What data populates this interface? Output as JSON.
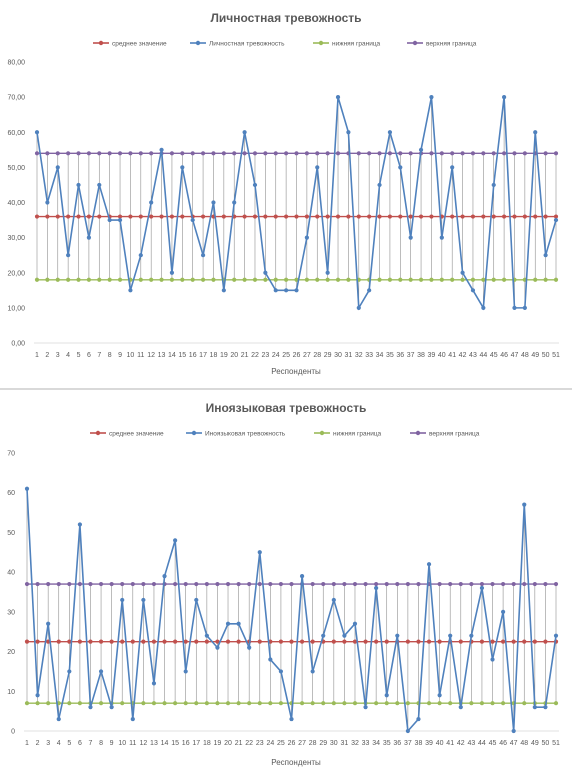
{
  "chart_data": [
    {
      "type": "line",
      "title": "Личностная тревожность",
      "xlabel": "Респонденты",
      "ylabel": "",
      "ylim": [
        0,
        80
      ],
      "ytick_step": 10,
      "ytick_format": "comma2",
      "x": [
        1,
        2,
        3,
        4,
        5,
        6,
        7,
        8,
        9,
        10,
        11,
        12,
        13,
        14,
        15,
        16,
        17,
        18,
        19,
        20,
        21,
        22,
        23,
        24,
        25,
        26,
        27,
        28,
        29,
        30,
        31,
        32,
        33,
        34,
        35,
        36,
        37,
        38,
        39,
        40,
        41,
        42,
        43,
        44,
        45,
        46,
        47,
        48,
        49,
        50,
        51
      ],
      "legend_position": "top",
      "series": [
        {
          "name": "среднее значение",
          "color": "#c0504d",
          "values": [
            36,
            36,
            36,
            36,
            36,
            36,
            36,
            36,
            36,
            36,
            36,
            36,
            36,
            36,
            36,
            36,
            36,
            36,
            36,
            36,
            36,
            36,
            36,
            36,
            36,
            36,
            36,
            36,
            36,
            36,
            36,
            36,
            36,
            36,
            36,
            36,
            36,
            36,
            36,
            36,
            36,
            36,
            36,
            36,
            36,
            36,
            36,
            36,
            36,
            36,
            36
          ]
        },
        {
          "name": "Личностная тревожность",
          "color": "#4f81bd",
          "values": [
            60,
            40,
            50,
            25,
            45,
            30,
            45,
            35,
            35,
            15,
            25,
            40,
            55,
            20,
            50,
            35,
            25,
            40,
            15,
            40,
            60,
            45,
            20,
            15,
            15,
            15,
            30,
            50,
            20,
            70,
            60,
            10,
            15,
            45,
            60,
            50,
            30,
            55,
            70,
            30,
            50,
            20,
            15,
            10,
            45,
            70,
            10,
            10,
            60,
            25,
            35
          ]
        },
        {
          "name": "нижняя граница",
          "color": "#9bbb59",
          "values": [
            18,
            18,
            18,
            18,
            18,
            18,
            18,
            18,
            18,
            18,
            18,
            18,
            18,
            18,
            18,
            18,
            18,
            18,
            18,
            18,
            18,
            18,
            18,
            18,
            18,
            18,
            18,
            18,
            18,
            18,
            18,
            18,
            18,
            18,
            18,
            18,
            18,
            18,
            18,
            18,
            18,
            18,
            18,
            18,
            18,
            18,
            18,
            18,
            18,
            18,
            18
          ]
        },
        {
          "name": "верхняя граница",
          "color": "#8064a2",
          "values": [
            54,
            54,
            54,
            54,
            54,
            54,
            54,
            54,
            54,
            54,
            54,
            54,
            54,
            54,
            54,
            54,
            54,
            54,
            54,
            54,
            54,
            54,
            54,
            54,
            54,
            54,
            54,
            54,
            54,
            54,
            54,
            54,
            54,
            54,
            54,
            54,
            54,
            54,
            54,
            54,
            54,
            54,
            54,
            54,
            54,
            54,
            54,
            54,
            54,
            54,
            54
          ]
        }
      ],
      "drop_lines": true
    },
    {
      "type": "line",
      "title": "Иноязыковая тревожность",
      "xlabel": "Респонденты",
      "ylabel": "",
      "ylim": [
        0,
        70
      ],
      "ytick_step": 10,
      "ytick_format": "int",
      "x": [
        1,
        2,
        3,
        4,
        5,
        6,
        7,
        8,
        9,
        10,
        11,
        12,
        13,
        14,
        15,
        16,
        17,
        18,
        19,
        20,
        21,
        22,
        23,
        24,
        25,
        26,
        27,
        28,
        29,
        30,
        31,
        32,
        33,
        34,
        35,
        36,
        37,
        38,
        39,
        40,
        41,
        42,
        43,
        44,
        45,
        46,
        47,
        48,
        49,
        50,
        51
      ],
      "legend_position": "top",
      "series": [
        {
          "name": "среднее значение",
          "color": "#c0504d",
          "values": [
            22.5,
            22.5,
            22.5,
            22.5,
            22.5,
            22.5,
            22.5,
            22.5,
            22.5,
            22.5,
            22.5,
            22.5,
            22.5,
            22.5,
            22.5,
            22.5,
            22.5,
            22.5,
            22.5,
            22.5,
            22.5,
            22.5,
            22.5,
            22.5,
            22.5,
            22.5,
            22.5,
            22.5,
            22.5,
            22.5,
            22.5,
            22.5,
            22.5,
            22.5,
            22.5,
            22.5,
            22.5,
            22.5,
            22.5,
            22.5,
            22.5,
            22.5,
            22.5,
            22.5,
            22.5,
            22.5,
            22.5,
            22.5,
            22.5,
            22.5,
            22.5
          ]
        },
        {
          "name": "Иноязыковая тревожность",
          "color": "#4f81bd",
          "values": [
            61,
            9,
            27,
            3,
            15,
            52,
            6,
            15,
            6,
            33,
            3,
            33,
            12,
            39,
            48,
            15,
            33,
            24,
            21,
            27,
            27,
            21,
            45,
            18,
            15,
            3,
            39,
            15,
            24,
            33,
            24,
            27,
            6,
            36,
            9,
            24,
            0,
            3,
            42,
            9,
            24,
            6,
            24,
            36,
            18,
            30,
            0,
            57,
            6,
            6,
            24
          ]
        },
        {
          "name": "нижняя граница",
          "color": "#9bbb59",
          "values": [
            7,
            7,
            7,
            7,
            7,
            7,
            7,
            7,
            7,
            7,
            7,
            7,
            7,
            7,
            7,
            7,
            7,
            7,
            7,
            7,
            7,
            7,
            7,
            7,
            7,
            7,
            7,
            7,
            7,
            7,
            7,
            7,
            7,
            7,
            7,
            7,
            7,
            7,
            7,
            7,
            7,
            7,
            7,
            7,
            7,
            7,
            7,
            7,
            7,
            7,
            7
          ]
        },
        {
          "name": "верхняя граница",
          "color": "#8064a2",
          "values": [
            37,
            37,
            37,
            37,
            37,
            37,
            37,
            37,
            37,
            37,
            37,
            37,
            37,
            37,
            37,
            37,
            37,
            37,
            37,
            37,
            37,
            37,
            37,
            37,
            37,
            37,
            37,
            37,
            37,
            37,
            37,
            37,
            37,
            37,
            37,
            37,
            37,
            37,
            37,
            37,
            37,
            37,
            37,
            37,
            37,
            37,
            37,
            37,
            37,
            37,
            37
          ]
        }
      ],
      "drop_lines": true
    }
  ]
}
